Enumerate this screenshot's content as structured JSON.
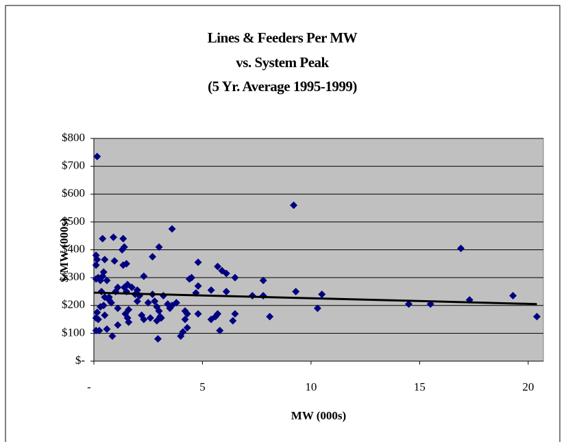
{
  "chart_data": {
    "type": "scatter",
    "title": [
      "Lines & Feeders Per MW",
      "vs. System Peak",
      "(5 Yr. Average 1995-1999)"
    ],
    "x_label": "MW (000s)",
    "y_label": "$/MW (000s)",
    "xlim": [
      0,
      20.7
    ],
    "ylim": [
      0,
      800
    ],
    "xticks": [
      {
        "value": 0,
        "label": "-"
      },
      5,
      10,
      15,
      20
    ],
    "yticks": [
      {
        "value": 0,
        "label": "$-"
      },
      {
        "value": 100,
        "label": "$100"
      },
      {
        "value": 200,
        "label": "$200"
      },
      {
        "value": 300,
        "label": "$300"
      },
      {
        "value": 400,
        "label": "$400"
      },
      {
        "value": 500,
        "label": "$500"
      },
      {
        "value": 600,
        "label": "$600"
      },
      {
        "value": 700,
        "label": "$700"
      },
      {
        "value": 800,
        "label": "$800"
      }
    ],
    "grid": true,
    "color": "#000080",
    "x": [
      0.15,
      0.1,
      0.15,
      0.1,
      0.2,
      0.1,
      0.3,
      0.15,
      0.1,
      0.2,
      0.25,
      0.1,
      0.4,
      0.5,
      0.45,
      0.4,
      0.35,
      0.5,
      0.45,
      0.3,
      0.5,
      0.6,
      0.6,
      0.7,
      0.8,
      0.7,
      0.9,
      0.95,
      0.85,
      1.1,
      1.0,
      1.1,
      1.1,
      1.3,
      1.35,
      1.4,
      1.35,
      1.5,
      1.4,
      1.5,
      1.55,
      1.45,
      1.55,
      1.6,
      1.6,
      1.75,
      1.9,
      2.0,
      2.0,
      2.1,
      2.2,
      2.3,
      2.3,
      2.5,
      2.6,
      2.7,
      2.7,
      2.8,
      2.9,
      2.9,
      2.95,
      3.0,
      3.0,
      3.05,
      3.1,
      3.2,
      3.4,
      3.5,
      3.6,
      3.6,
      3.8,
      4.0,
      4.1,
      4.2,
      4.2,
      4.3,
      4.3,
      4.4,
      4.5,
      4.7,
      4.8,
      4.8,
      4.8,
      5.4,
      5.4,
      5.6,
      5.7,
      5.7,
      5.8,
      5.9,
      6.1,
      6.1,
      6.4,
      6.5,
      6.5,
      7.3,
      7.8,
      7.8,
      8.1,
      9.2,
      9.3,
      10.3,
      10.5,
      14.5,
      15.5,
      16.9,
      17.3,
      19.3,
      20.4
    ],
    "values": [
      735,
      380,
      365,
      345,
      300,
      295,
      290,
      175,
      155,
      150,
      110,
      110,
      440,
      365,
      320,
      305,
      250,
      230,
      200,
      195,
      165,
      115,
      290,
      230,
      210,
      220,
      445,
      360,
      90,
      265,
      250,
      190,
      130,
      400,
      440,
      410,
      345,
      350,
      265,
      250,
      275,
      170,
      155,
      140,
      185,
      265,
      240,
      255,
      215,
      235,
      165,
      150,
      305,
      210,
      155,
      240,
      375,
      215,
      195,
      145,
      80,
      410,
      180,
      160,
      155,
      235,
      205,
      190,
      475,
      200,
      210,
      90,
      105,
      150,
      180,
      120,
      170,
      295,
      300,
      245,
      355,
      270,
      170,
      255,
      150,
      160,
      170,
      340,
      110,
      325,
      250,
      315,
      145,
      300,
      170,
      235,
      290,
      235,
      160,
      560,
      250,
      190,
      240,
      205,
      205,
      405,
      220,
      235,
      160
    ],
    "trendline": {
      "x": [
        0,
        20.4
      ],
      "values": [
        246,
        205
      ],
      "color": "#000000"
    }
  }
}
